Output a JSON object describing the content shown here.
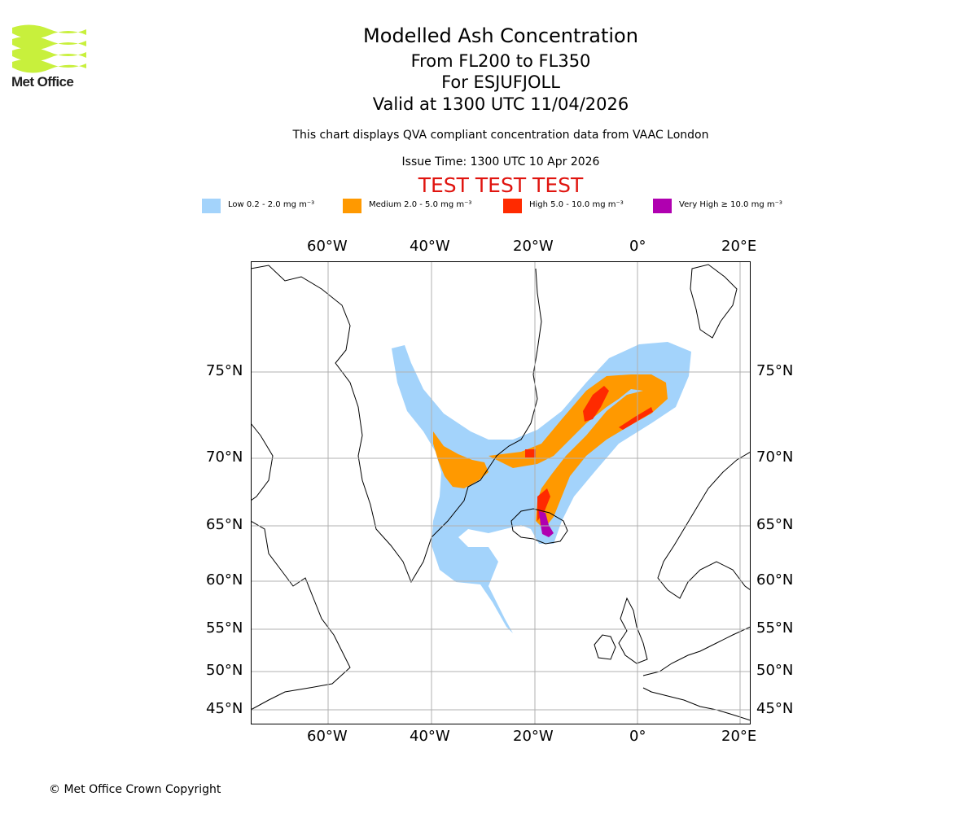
{
  "logo": {
    "text": "Met Office"
  },
  "title": {
    "main": "Modelled Ash Concentration",
    "levels": "From FL200 to FL350",
    "volcano": "For ESJUFJOLL",
    "valid": "Valid at 1300 UTC 11/04/2026",
    "note": "This chart displays QVA compliant concentration data from VAAC London",
    "issue": "Issue Time: 1300 UTC 10 Apr 2026",
    "test_banner": "TEST TEST TEST"
  },
  "legend": [
    {
      "label": "Low 0.2 - 2.0 mg m⁻³",
      "color": "#a3d3fb"
    },
    {
      "label": "Medium 2.0 - 5.0 mg m⁻³",
      "color": "#ff9900"
    },
    {
      "label": "High 5.0 - 10.0 mg m⁻³",
      "color": "#ff2a00"
    },
    {
      "label": "Very High ≥ 10.0 mg m⁻³",
      "color": "#b000b0"
    }
  ],
  "axes": {
    "lon_labels": [
      "60°W",
      "40°W",
      "20°W",
      "0°",
      "20°E"
    ],
    "lat_labels": [
      "75°N",
      "70°N",
      "65°N",
      "60°N",
      "55°N",
      "50°N",
      "45°N"
    ]
  },
  "colors": {
    "gridline": "#b0b0b0",
    "coastline": "#000000",
    "logo_green": "#c8f03c",
    "test_red": "#e0140f"
  },
  "footer": {
    "copyright": "© Met Office Crown Copyright"
  }
}
